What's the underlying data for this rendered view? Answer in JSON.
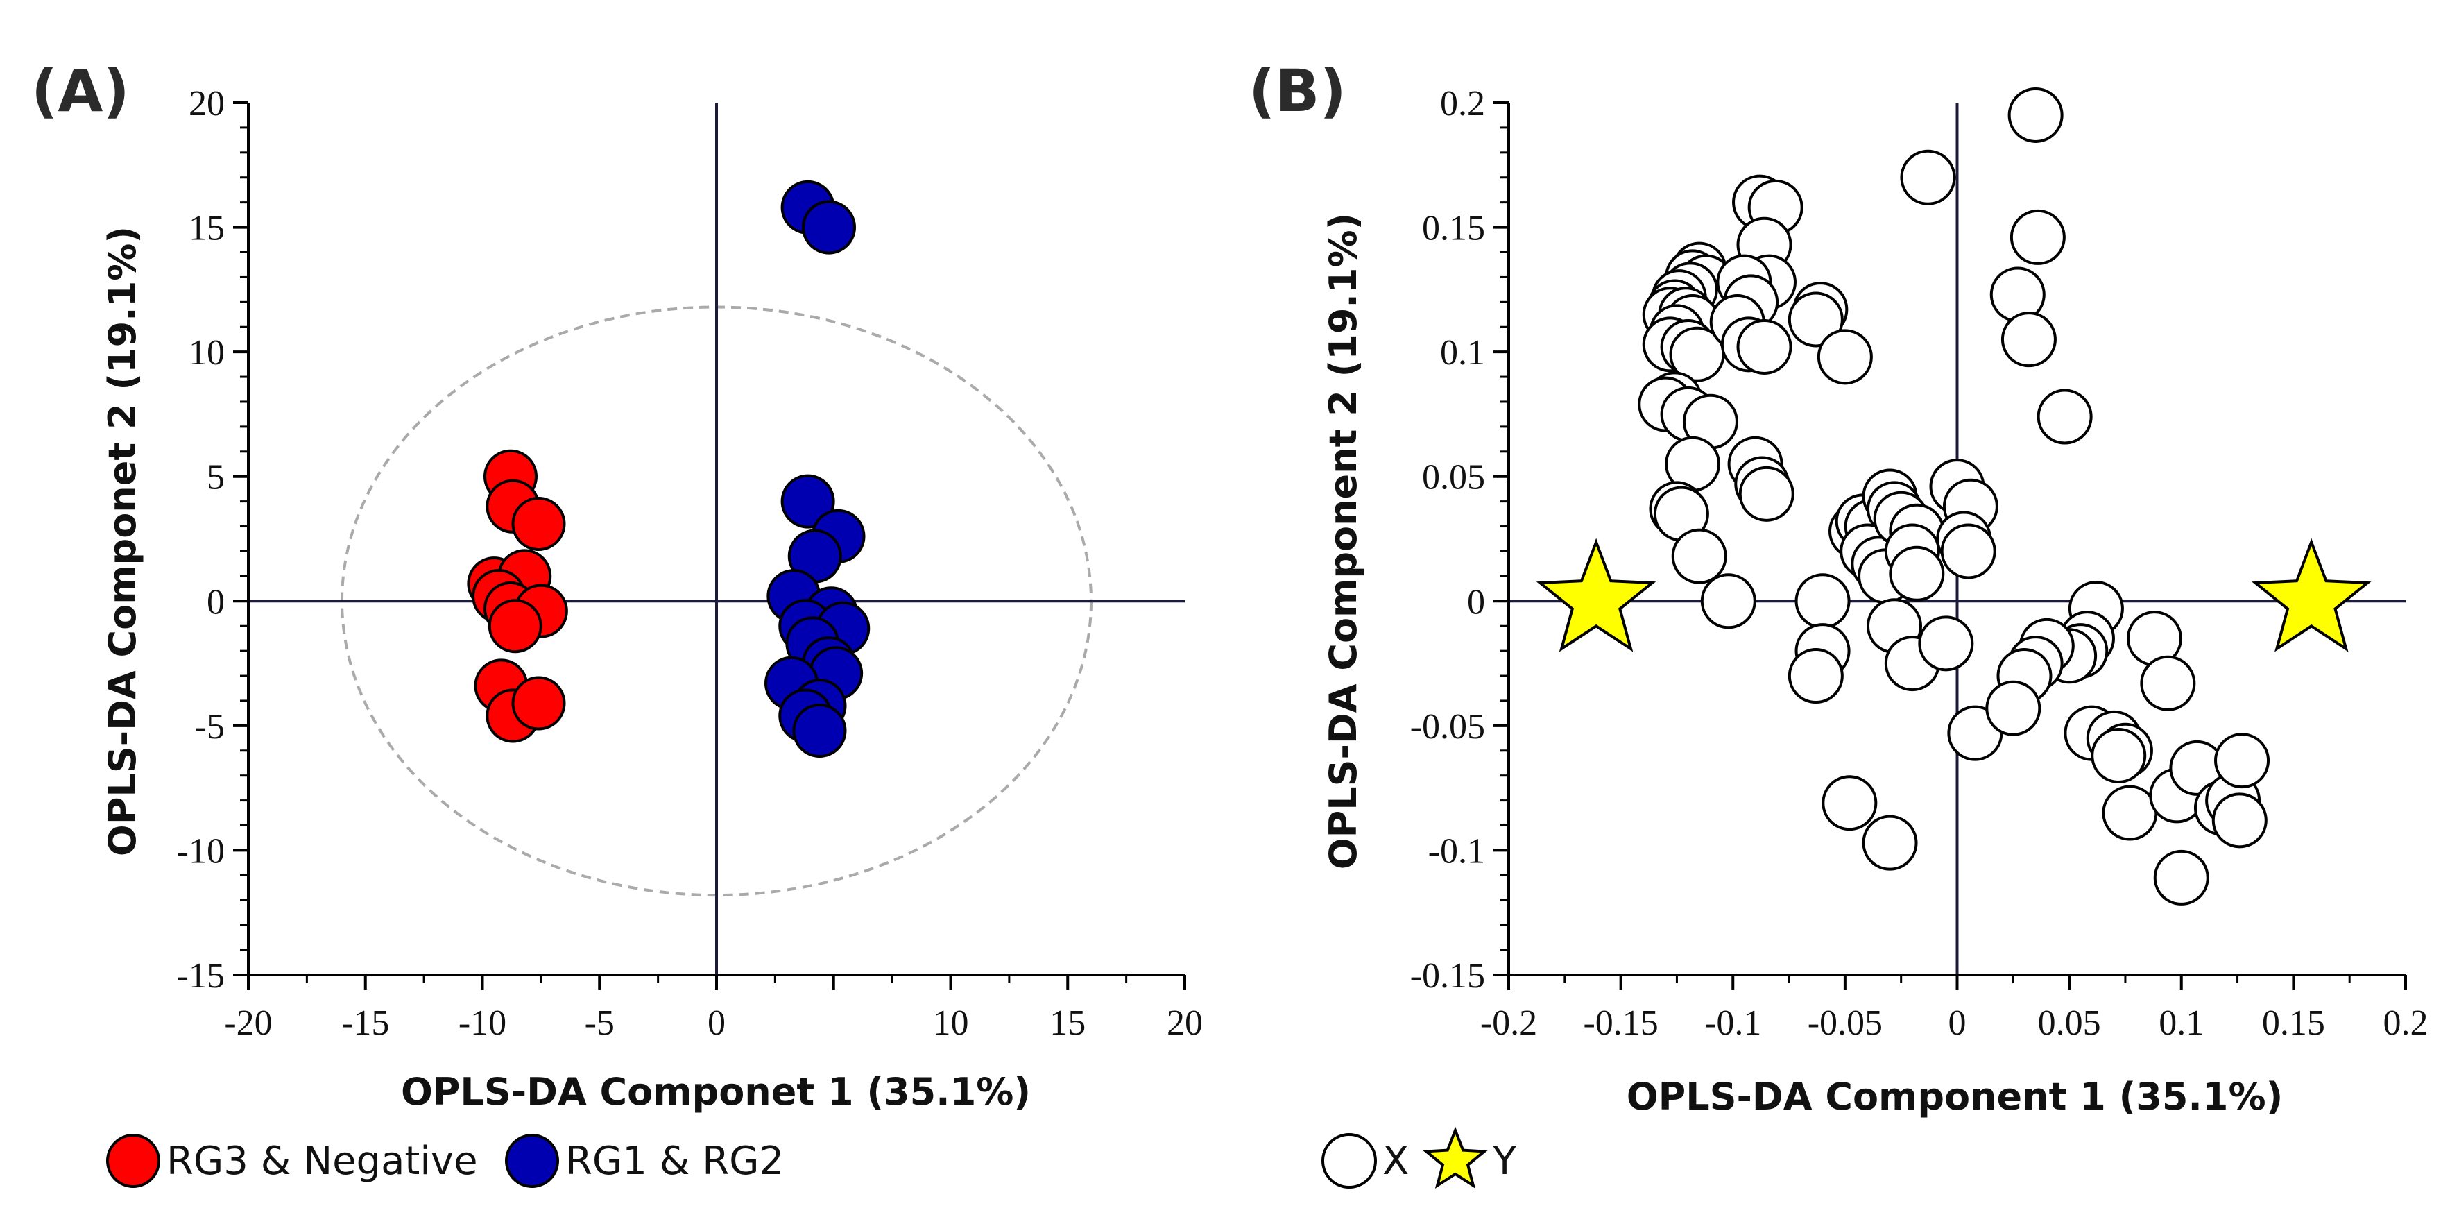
{
  "panels": [
    {
      "label": "(A)",
      "chart_data": {
        "type": "scatter",
        "xlabel": "OPLS-DA Componet 1 (35.1%)",
        "ylabel": "OPLS-DA Componet 2 (19.1%)",
        "xlim": [
          -20,
          20
        ],
        "ylim": [
          -15,
          20
        ],
        "xticks": [
          -20,
          -15,
          -10,
          -5,
          0,
          10,
          15,
          20
        ],
        "xtick_labels": [
          "-20",
          "-15",
          "-10",
          "-5",
          "0",
          "10",
          "15",
          "20"
        ],
        "yticks": [
          -15,
          -10,
          -5,
          0,
          5,
          10,
          15,
          20
        ],
        "ytick_labels": [
          "-15",
          "-10",
          "-5",
          "0",
          "5",
          "10",
          "15",
          "20"
        ],
        "grid": false,
        "ellipse": {
          "center": [
            0,
            0
          ],
          "radii": [
            16,
            11.8
          ],
          "color": "#aaaaaa",
          "style": "dashed"
        },
        "series": [
          {
            "name": "RG3 & Negative",
            "color": "#ff0000",
            "marker": "circle",
            "points": [
              [
                -8.8,
                5.0
              ],
              [
                -8.7,
                3.8
              ],
              [
                -7.6,
                3.1
              ],
              [
                -9.5,
                0.7
              ],
              [
                -8.2,
                1.0
              ],
              [
                -9.3,
                0.2
              ],
              [
                -8.8,
                -0.3
              ],
              [
                -7.5,
                -0.4
              ],
              [
                -8.6,
                -1.0
              ],
              [
                -9.2,
                -3.4
              ],
              [
                -8.7,
                -4.6
              ],
              [
                -7.6,
                -4.1
              ]
            ]
          },
          {
            "name": "RG1 & RG2",
            "color": "#0000b0",
            "marker": "circle",
            "points": [
              [
                3.9,
                15.8
              ],
              [
                4.8,
                15.0
              ],
              [
                3.9,
                4.0
              ],
              [
                5.2,
                2.6
              ],
              [
                4.2,
                1.8
              ],
              [
                3.3,
                0.2
              ],
              [
                4.9,
                -0.5
              ],
              [
                3.8,
                -1.0
              ],
              [
                5.4,
                -1.1
              ],
              [
                4.1,
                -1.7
              ],
              [
                4.8,
                -2.5
              ],
              [
                5.1,
                -2.9
              ],
              [
                3.2,
                -3.3
              ],
              [
                4.4,
                -4.2
              ],
              [
                3.8,
                -4.6
              ],
              [
                4.4,
                -5.2
              ]
            ]
          }
        ]
      }
    },
    {
      "label": "(B)",
      "chart_data": {
        "type": "scatter",
        "xlabel": "OPLS-DA Component 1 (35.1%)",
        "ylabel": "OPLS-DA Component 2 (19.1%)",
        "xlim": [
          -0.2,
          0.2
        ],
        "ylim": [
          -0.15,
          0.2
        ],
        "xticks": [
          -0.2,
          -0.15,
          -0.1,
          -0.05,
          0,
          0.05,
          0.1,
          0.15,
          0.2
        ],
        "xtick_labels": [
          "-0.2",
          "-0.15",
          "-0.1",
          "-0.05",
          "0",
          "0.05",
          "0.1",
          "0.15",
          "0.2"
        ],
        "yticks": [
          -0.15,
          -0.1,
          -0.05,
          0,
          0.05,
          0.1,
          0.15,
          0.2
        ],
        "ytick_labels": [
          "-0.15",
          "-0.1",
          "-0.05",
          "0",
          "0.05",
          "0.1",
          "0.15",
          "0.2"
        ],
        "grid": false,
        "series": [
          {
            "name": "X",
            "color": "#ffffff",
            "marker": "open-circle",
            "points": [
              [
                0.035,
                0.195
              ],
              [
                -0.013,
                0.17
              ],
              [
                -0.088,
                0.16
              ],
              [
                -0.081,
                0.158
              ],
              [
                0.027,
                0.123
              ],
              [
                0.036,
                0.146
              ],
              [
                -0.086,
                0.143
              ],
              [
                -0.084,
                0.128
              ],
              [
                -0.115,
                0.133
              ],
              [
                -0.118,
                0.13
              ],
              [
                -0.112,
                0.128
              ],
              [
                -0.119,
                0.125
              ],
              [
                -0.124,
                0.122
              ],
              [
                -0.126,
                0.118
              ],
              [
                -0.128,
                0.115
              ],
              [
                -0.121,
                0.115
              ],
              [
                -0.118,
                0.112
              ],
              [
                -0.125,
                0.108
              ],
              [
                -0.128,
                0.103
              ],
              [
                -0.12,
                0.102
              ],
              [
                -0.116,
                0.099
              ],
              [
                -0.095,
                0.128
              ],
              [
                -0.092,
                0.12
              ],
              [
                -0.098,
                0.112
              ],
              [
                -0.093,
                0.103
              ],
              [
                -0.086,
                0.102
              ],
              [
                -0.061,
                0.117
              ],
              [
                -0.063,
                0.113
              ],
              [
                -0.05,
                0.098
              ],
              [
                0.032,
                0.105
              ],
              [
                0.048,
                0.074
              ],
              [
                -0.126,
                0.081
              ],
              [
                -0.13,
                0.079
              ],
              [
                -0.12,
                0.075
              ],
              [
                -0.11,
                0.072
              ],
              [
                -0.118,
                0.055
              ],
              [
                -0.09,
                0.055
              ],
              [
                -0.087,
                0.047
              ],
              [
                -0.085,
                0.043
              ],
              [
                -0.125,
                0.037
              ],
              [
                -0.123,
                0.035
              ],
              [
                -0.115,
                0.018
              ],
              [
                -0.102,
                0.0
              ],
              [
                -0.06,
                0.0
              ],
              [
                -0.045,
                0.028
              ],
              [
                -0.042,
                0.032
              ],
              [
                -0.038,
                0.03
              ],
              [
                -0.03,
                0.042
              ],
              [
                -0.028,
                0.037
              ],
              [
                -0.04,
                0.02
              ],
              [
                -0.035,
                0.015
              ],
              [
                -0.032,
                0.01
              ],
              [
                -0.025,
                0.033
              ],
              [
                -0.018,
                0.028
              ],
              [
                -0.02,
                0.02
              ],
              [
                0.0,
                0.046
              ],
              [
                0.006,
                0.038
              ],
              [
                0.003,
                0.025
              ],
              [
                0.005,
                0.02
              ],
              [
                -0.018,
                0.011
              ],
              [
                -0.028,
                -0.01
              ],
              [
                -0.02,
                -0.025
              ],
              [
                -0.005,
                -0.017
              ],
              [
                0.008,
                -0.053
              ],
              [
                0.062,
                -0.003
              ],
              [
                0.058,
                -0.015
              ],
              [
                0.055,
                -0.02
              ],
              [
                0.05,
                -0.022
              ],
              [
                0.04,
                -0.018
              ],
              [
                0.035,
                -0.025
              ],
              [
                0.03,
                -0.03
              ],
              [
                0.025,
                -0.043
              ],
              [
                0.06,
                -0.053
              ],
              [
                0.07,
                -0.055
              ],
              [
                0.075,
                -0.06
              ],
              [
                0.072,
                -0.062
              ],
              [
                0.088,
                -0.015
              ],
              [
                0.094,
                -0.033
              ],
              [
                0.077,
                -0.085
              ],
              [
                0.098,
                -0.078
              ],
              [
                0.107,
                -0.067
              ],
              [
                0.118,
                -0.083
              ],
              [
                0.123,
                -0.08
              ],
              [
                0.126,
                -0.088
              ],
              [
                0.127,
                -0.064
              ],
              [
                0.1,
                -0.111
              ],
              [
                -0.06,
                -0.02
              ],
              [
                -0.063,
                -0.03
              ],
              [
                -0.048,
                -0.081
              ],
              [
                -0.03,
                -0.097
              ]
            ]
          },
          {
            "name": "Y",
            "color": "#ffff00",
            "marker": "star",
            "points": [
              [
                -0.161,
                0.0
              ],
              [
                0.158,
                0.0
              ]
            ]
          }
        ]
      }
    }
  ]
}
